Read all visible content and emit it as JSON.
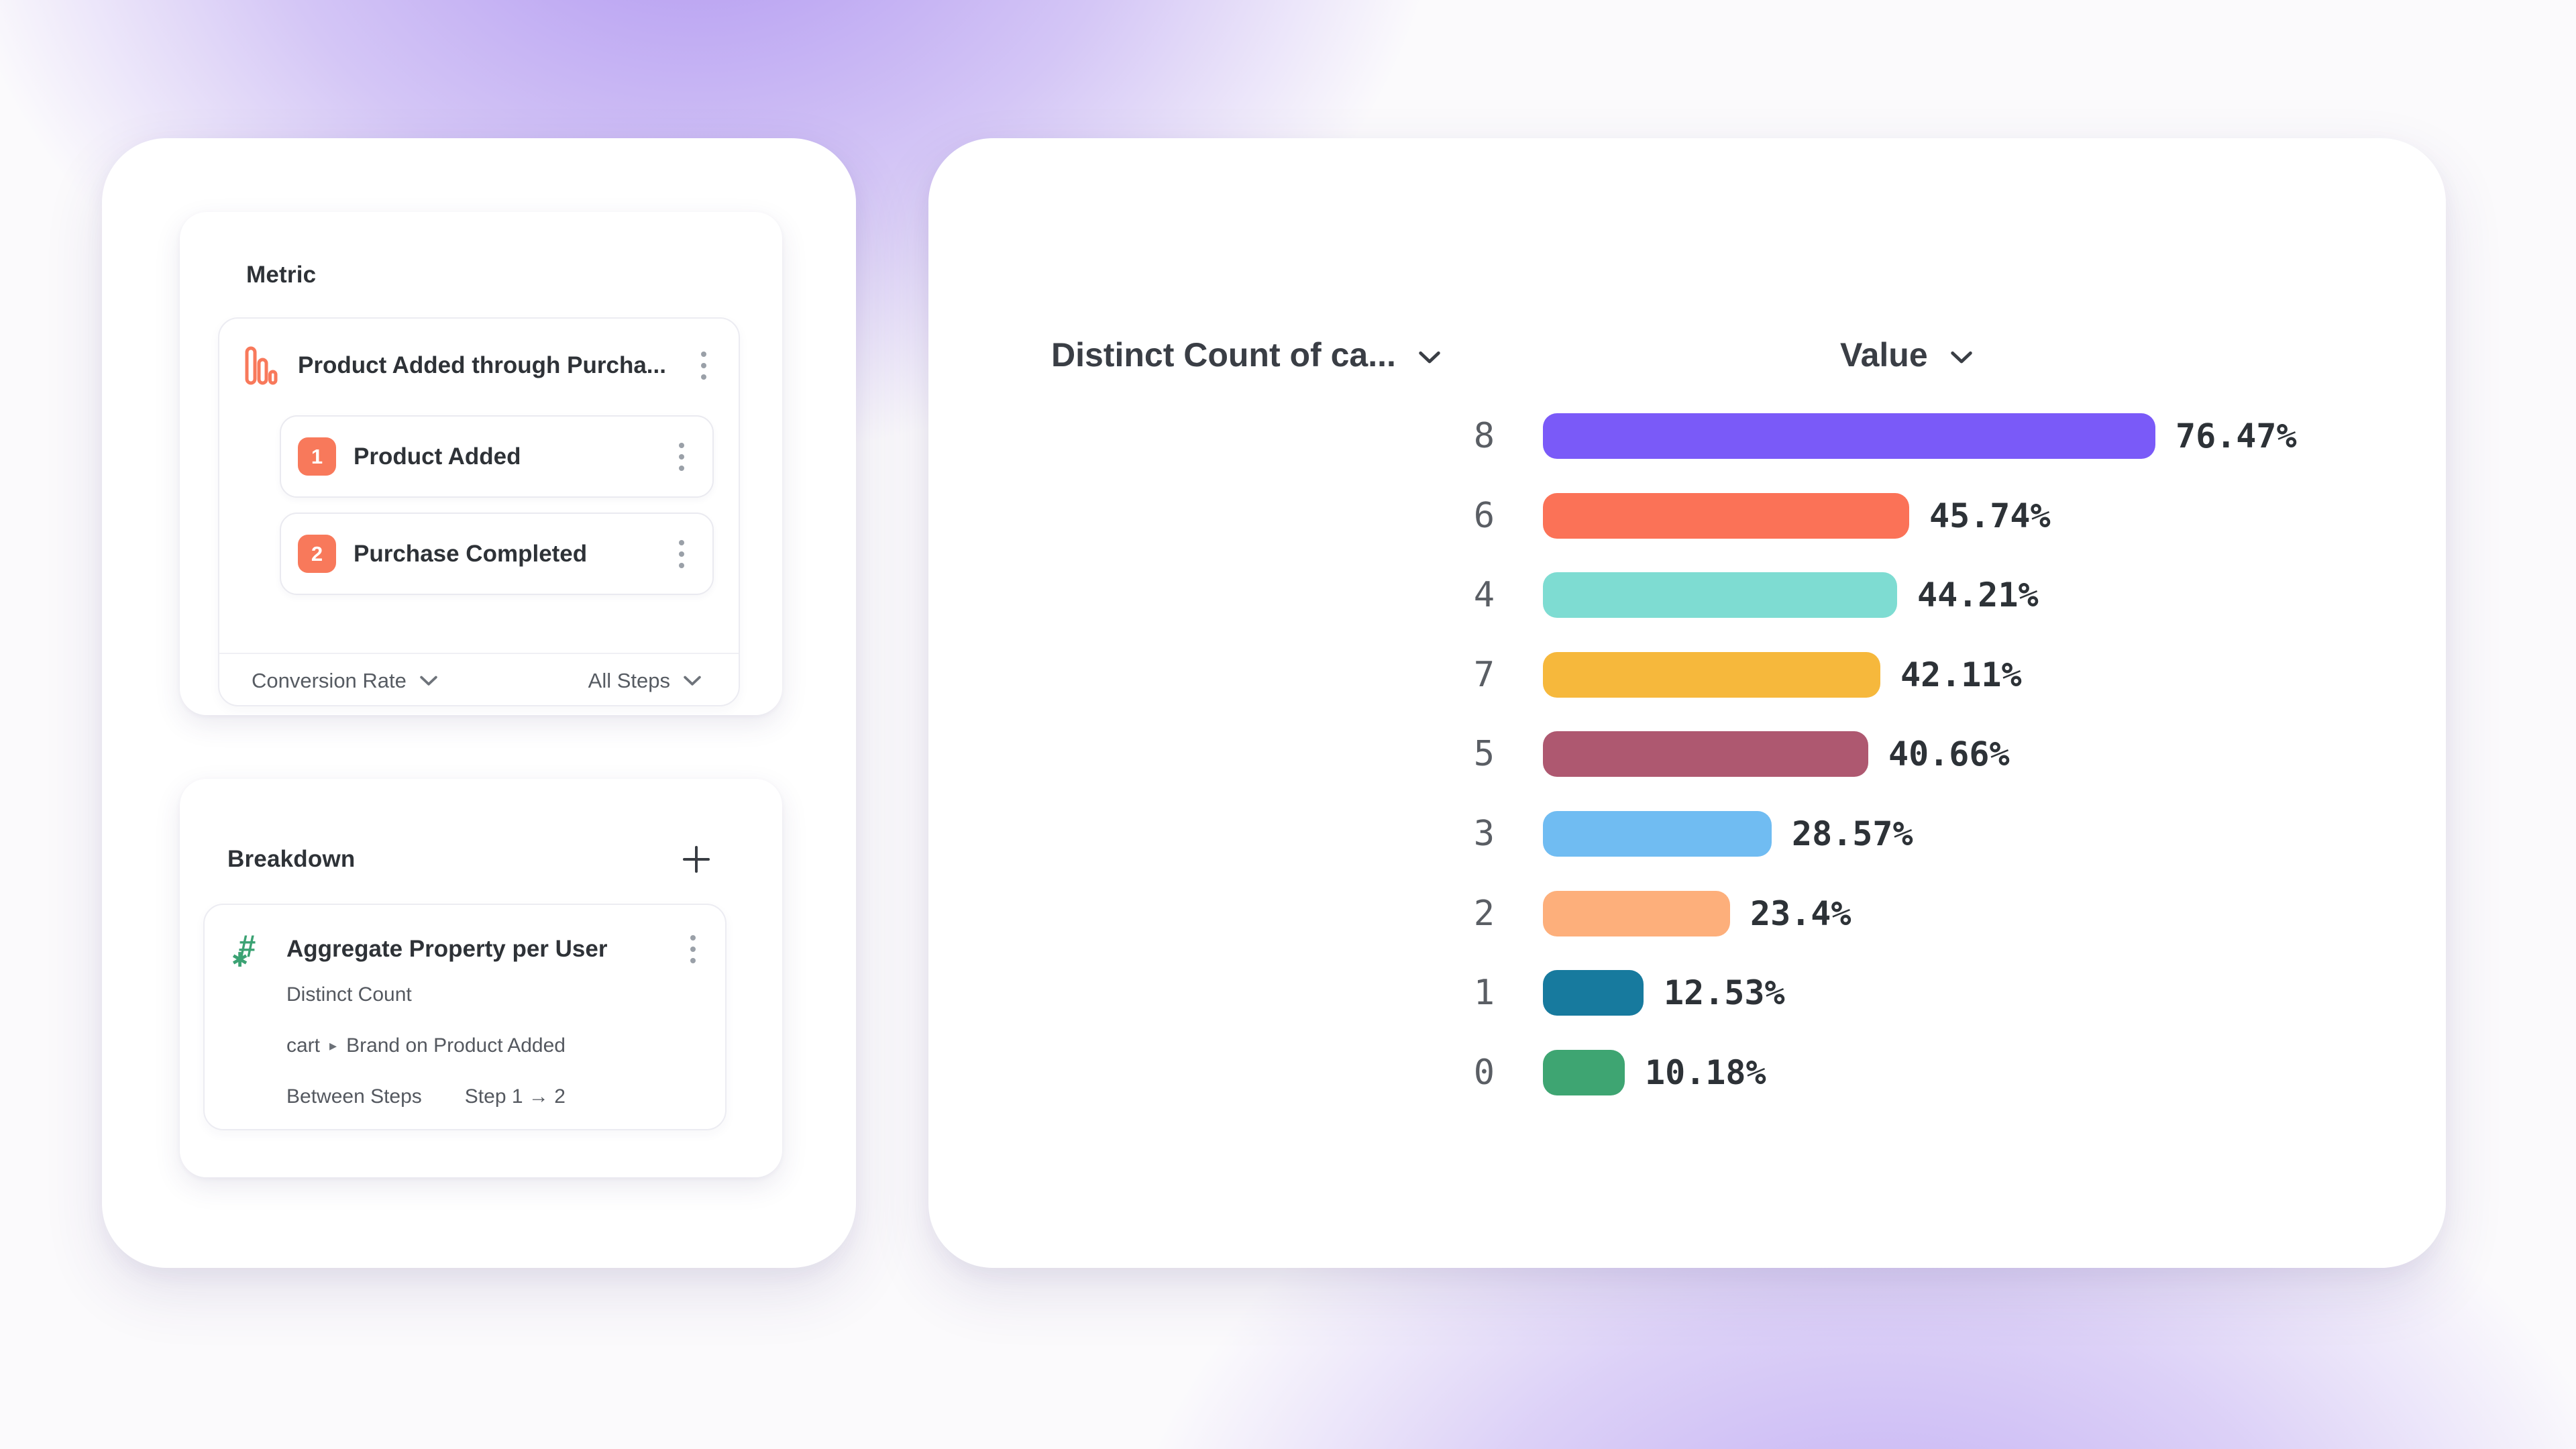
{
  "colors": {
    "accent_coral": "#F8795B",
    "icon_green": "#3BA273",
    "background_purple": "#7A4EE8",
    "card_white": "#FFFFFF"
  },
  "metric_panel": {
    "title": "Metric",
    "funnel": {
      "title": "Product Added through Purcha...",
      "icon": "funnel-bars-icon",
      "steps": [
        {
          "index": "1",
          "label": "Product Added"
        },
        {
          "index": "2",
          "label": "Purchase Completed"
        }
      ],
      "measure_label": "Conversion Rate",
      "steps_scope_label": "All Steps"
    }
  },
  "breakdown_panel": {
    "title": "Breakdown",
    "add_button": "plus-icon",
    "item": {
      "icon": "aggregate-number-icon",
      "title": "Aggregate Property per User",
      "aggregation": "Distinct Count",
      "property_parent": "cart",
      "property_name": "Brand on Product Added",
      "scope_label": "Between Steps",
      "scope_value": "Step 1 → 2"
    }
  },
  "chart_panel": {
    "left_header": "Distinct Count of ca...",
    "right_header": "Value"
  },
  "chart_data": {
    "type": "bar",
    "orientation": "horizontal",
    "categories": [
      "8",
      "6",
      "4",
      "7",
      "5",
      "3",
      "2",
      "1",
      "0"
    ],
    "values": [
      76.47,
      45.74,
      44.21,
      42.11,
      40.66,
      28.57,
      23.4,
      12.53,
      10.18
    ],
    "labels": [
      "76.47%",
      "45.74%",
      "44.21%",
      "42.11%",
      "40.66%",
      "28.57%",
      "23.4%",
      "12.53%",
      "10.18%"
    ],
    "colors": [
      "#7A5AF8",
      "#FB7257",
      "#7EDCD2",
      "#F6B83C",
      "#AE5870",
      "#70BCF2",
      "#FDAF7B",
      "#177A9E",
      "#3EA572"
    ],
    "xlabel": "Value",
    "ylabel": "Distinct Count of ca...",
    "xlim": [
      0,
      100
    ],
    "grid": false,
    "legend": "none",
    "value_label_format": "percent"
  }
}
